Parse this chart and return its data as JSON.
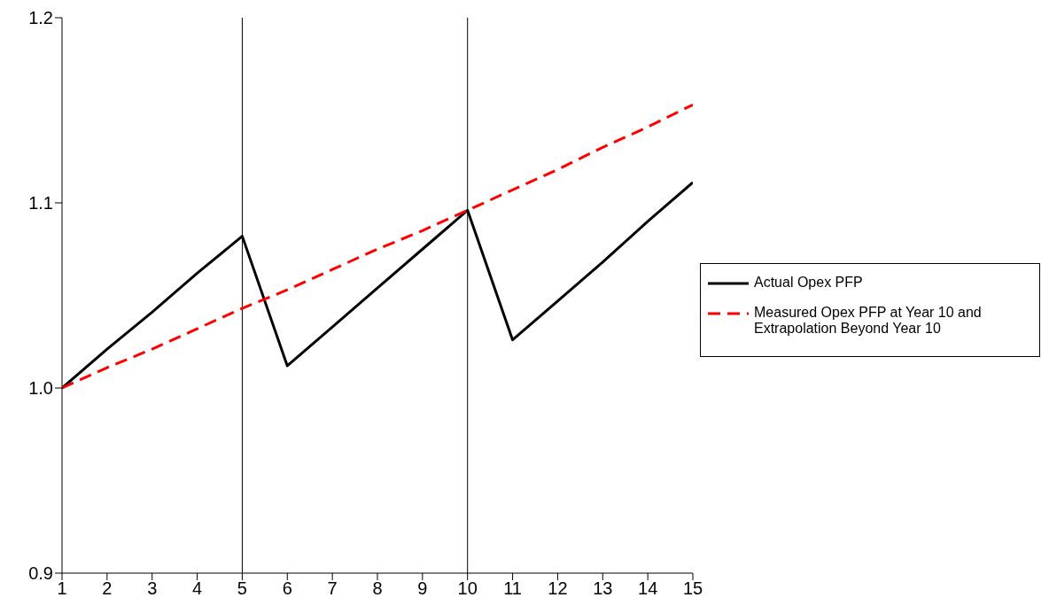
{
  "chart_data": {
    "type": "line",
    "x": [
      1,
      2,
      3,
      4,
      5,
      6,
      7,
      8,
      9,
      10,
      11,
      12,
      13,
      14,
      15
    ],
    "series": [
      {
        "name": "Actual Opex PFP",
        "color": "#000000",
        "line_style": "solid",
        "values": [
          1.0,
          1.021,
          1.041,
          1.062,
          1.082,
          1.012,
          1.033,
          1.054,
          1.075,
          1.096,
          1.026,
          1.047,
          1.068,
          1.09,
          1.111
        ]
      },
      {
        "name": "Measured Opex PFP at Year 10 and Extrapolation Beyond Year 10",
        "color": "#ff0000",
        "line_style": "dashed",
        "values": [
          1.0,
          1.011,
          1.021,
          1.032,
          1.043,
          1.053,
          1.064,
          1.075,
          1.085,
          1.096,
          1.107,
          1.118,
          1.13,
          1.141,
          1.153
        ]
      }
    ],
    "xlim": [
      1,
      15
    ],
    "xticks": [
      1,
      2,
      3,
      4,
      5,
      6,
      7,
      8,
      9,
      10,
      11,
      12,
      13,
      14,
      15
    ],
    "ylim": [
      0.9,
      1.2
    ],
    "yticks": [
      {
        "value": 0.9,
        "label": "0.9"
      },
      {
        "value": 1.0,
        "label": "1.0"
      },
      {
        "value": 1.1,
        "label": "1.1"
      },
      {
        "value": 1.2,
        "label": "1.2"
      }
    ],
    "ref_lines": [
      {
        "axis": "x",
        "value": 5,
        "color": "#000000"
      },
      {
        "axis": "x",
        "value": 10,
        "color": "#000000"
      }
    ],
    "grid": false,
    "legend": "right",
    "marker": "none"
  }
}
